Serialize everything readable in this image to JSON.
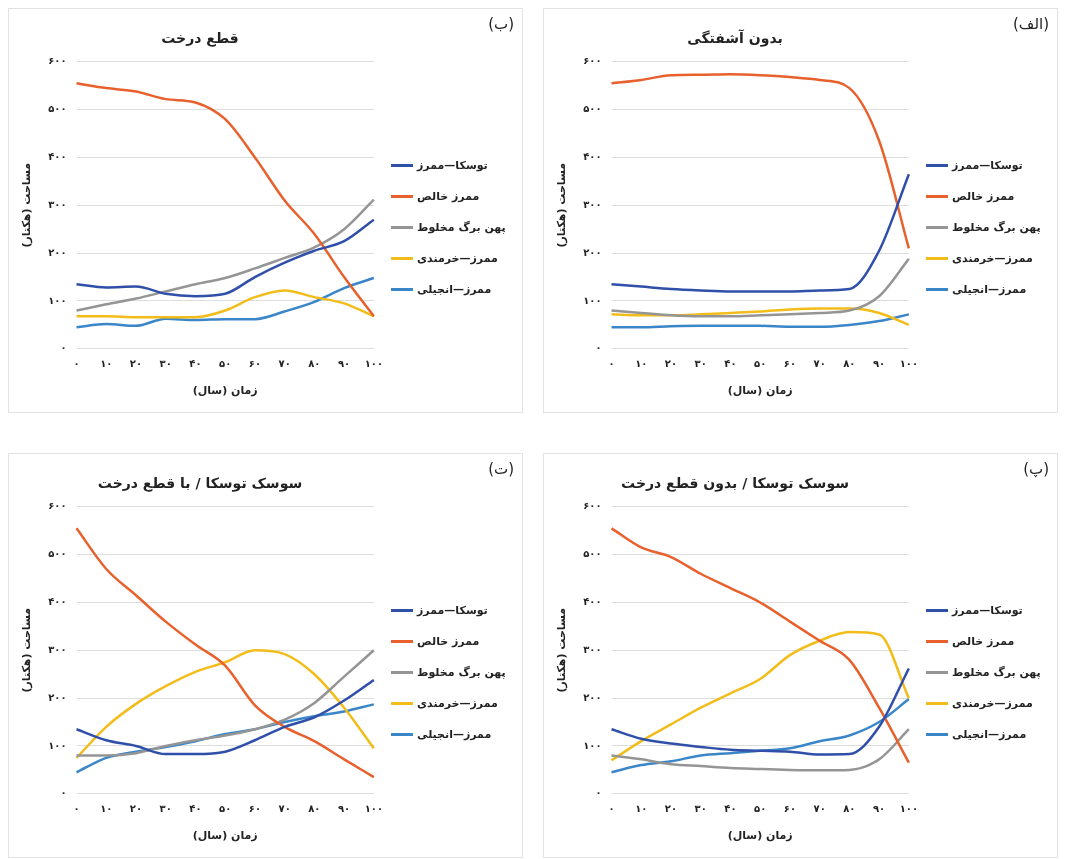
{
  "chart_data": [
    {
      "type": "line",
      "title": "بدون آشفتگی",
      "annotations": [
        "(الف)"
      ],
      "xlabel": "زمان (سال)",
      "ylabel": "مساحت (هکتار)",
      "categories": [
        "۰",
        "۱۰",
        "۲۰",
        "۳۰",
        "۴۰",
        "۵۰",
        "۶۰",
        "۷۰",
        "۸۰",
        "۹۰",
        "۱۰۰"
      ],
      "ylim": [
        0,
        600
      ],
      "yticks": [
        {
          "value": 0,
          "label": "۰"
        },
        {
          "value": 100,
          "label": "۱۰۰"
        },
        {
          "value": 200,
          "label": "۲۰۰"
        },
        {
          "value": 300,
          "label": "۳۰۰"
        },
        {
          "value": 400,
          "label": "۴۰۰"
        },
        {
          "value": 500,
          "label": "۵۰۰"
        },
        {
          "value": 600,
          "label": "۶۰۰"
        }
      ],
      "grid": "y",
      "legend": "right",
      "marker": "none",
      "series": [
        {
          "name": "توسکا—ممرز",
          "color": "#2f4fa8",
          "values": [
            135,
            130,
            125,
            122,
            120,
            120,
            120,
            122,
            125,
            205,
            365
          ]
        },
        {
          "name": "ممرز خالص",
          "color": "#e8602c",
          "values": [
            555,
            562,
            572,
            573,
            574,
            572,
            568,
            562,
            545,
            435,
            210
          ]
        },
        {
          "name": "پهن برگ مخلوط",
          "color": "#959595",
          "values": [
            80,
            75,
            70,
            68,
            68,
            70,
            72,
            75,
            80,
            110,
            188
          ]
        },
        {
          "name": "ممرز—خرمندی",
          "color": "#f2bd1a",
          "values": [
            72,
            70,
            70,
            72,
            75,
            78,
            82,
            84,
            84,
            75,
            50
          ]
        },
        {
          "name": "ممرز—انجیلی",
          "color": "#3a86c8",
          "values": [
            45,
            45,
            47,
            48,
            48,
            48,
            46,
            46,
            50,
            58,
            72
          ]
        }
      ]
    },
    {
      "type": "line",
      "title": "قطع درخت",
      "annotations": [
        "(ب)"
      ],
      "xlabel": "زمان (سال)",
      "ylabel": "مساحت (هکتار)",
      "categories": [
        "۰",
        "۱۰",
        "۲۰",
        "۳۰",
        "۴۰",
        "۵۰",
        "۶۰",
        "۷۰",
        "۸۰",
        "۹۰",
        "۱۰۰"
      ],
      "ylim": [
        0,
        600
      ],
      "yticks": [
        {
          "value": 0,
          "label": "۰"
        },
        {
          "value": 100,
          "label": "۱۰۰"
        },
        {
          "value": 200,
          "label": "۲۰۰"
        },
        {
          "value": 300,
          "label": "۳۰۰"
        },
        {
          "value": 400,
          "label": "۴۰۰"
        },
        {
          "value": 500,
          "label": "۵۰۰"
        },
        {
          "value": 600,
          "label": "۶۰۰"
        }
      ],
      "grid": "y",
      "legend": "right",
      "marker": "none",
      "series": [
        {
          "name": "توسکا—ممرز",
          "color": "#2f4fa8",
          "values": [
            135,
            128,
            130,
            115,
            110,
            115,
            150,
            180,
            205,
            225,
            270
          ]
        },
        {
          "name": "ممرز خالص",
          "color": "#e8602c",
          "values": [
            555,
            545,
            538,
            522,
            515,
            480,
            400,
            310,
            240,
            150,
            68
          ]
        },
        {
          "name": "پهن برگ مخلوط",
          "color": "#959595",
          "values": [
            80,
            93,
            105,
            120,
            135,
            148,
            168,
            190,
            212,
            250,
            312
          ]
        },
        {
          "name": "ممرز—خرمندی",
          "color": "#f2bd1a",
          "values": [
            68,
            68,
            66,
            66,
            66,
            80,
            108,
            122,
            108,
            95,
            68
          ]
        },
        {
          "name": "ممرز—انجیلی",
          "color": "#3a86c8",
          "values": [
            45,
            52,
            48,
            63,
            60,
            62,
            62,
            78,
            98,
            127,
            148
          ]
        }
      ]
    },
    {
      "type": "line",
      "title": "سوسک توسکا / بدون قطع درخت",
      "annotations": [
        "(پ)"
      ],
      "xlabel": "زمان (سال)",
      "ylabel": "مساحت (هکتار)",
      "categories": [
        "۰",
        "۱۰",
        "۲۰",
        "۳۰",
        "۴۰",
        "۵۰",
        "۶۰",
        "۷۰",
        "۸۰",
        "۹۰",
        "۱۰۰"
      ],
      "ylim": [
        0,
        600
      ],
      "yticks": [
        {
          "value": 0,
          "label": "۰"
        },
        {
          "value": 100,
          "label": "۱۰۰"
        },
        {
          "value": 200,
          "label": "۲۰۰"
        },
        {
          "value": 300,
          "label": "۳۰۰"
        },
        {
          "value": 400,
          "label": "۴۰۰"
        },
        {
          "value": 500,
          "label": "۵۰۰"
        },
        {
          "value": 600,
          "label": "۶۰۰"
        }
      ],
      "grid": "y",
      "legend": "right",
      "marker": "none",
      "series": [
        {
          "name": "توسکا—ممرز",
          "color": "#2f4fa8",
          "values": [
            135,
            115,
            105,
            98,
            92,
            90,
            88,
            82,
            83,
            140,
            262
          ]
        },
        {
          "name": "ممرز خالص",
          "color": "#e8602c",
          "values": [
            555,
            515,
            495,
            460,
            430,
            400,
            360,
            320,
            280,
            180,
            65
          ]
        },
        {
          "name": "پهن برگ مخلوط",
          "color": "#959595",
          "values": [
            80,
            72,
            62,
            58,
            54,
            52,
            50,
            49,
            50,
            72,
            135
          ]
        },
        {
          "name": "ممرز—خرمندی",
          "color": "#f2bd1a",
          "values": [
            70,
            110,
            145,
            180,
            210,
            240,
            290,
            320,
            338,
            333,
            200
          ]
        },
        {
          "name": "ممرز—انجیلی",
          "color": "#3a86c8",
          "values": [
            45,
            60,
            68,
            80,
            85,
            90,
            95,
            110,
            122,
            150,
            198
          ]
        }
      ]
    },
    {
      "type": "line",
      "title": "سوسک توسکا / با قطع درخت",
      "annotations": [
        "(ت)"
      ],
      "xlabel": "زمان (سال)",
      "ylabel": "مساحت (هکتار)",
      "categories": [
        "۰",
        "۱۰",
        "۲۰",
        "۳۰",
        "۴۰",
        "۵۰",
        "۶۰",
        "۷۰",
        "۸۰",
        "۹۰",
        "۱۰۰"
      ],
      "ylim": [
        0,
        600
      ],
      "yticks": [
        {
          "value": 0,
          "label": "۰"
        },
        {
          "value": 100,
          "label": "۱۰۰"
        },
        {
          "value": 200,
          "label": "۲۰۰"
        },
        {
          "value": 300,
          "label": "۳۰۰"
        },
        {
          "value": 400,
          "label": "۴۰۰"
        },
        {
          "value": 500,
          "label": "۵۰۰"
        },
        {
          "value": 600,
          "label": "۶۰۰"
        }
      ],
      "grid": "y",
      "legend": "right",
      "marker": "none",
      "series": [
        {
          "name": "توسکا—ممرز",
          "color": "#2f4fa8",
          "values": [
            135,
            112,
            100,
            83,
            83,
            88,
            112,
            140,
            160,
            195,
            238
          ]
        },
        {
          "name": "ممرز خالص",
          "color": "#e8602c",
          "values": [
            555,
            470,
            415,
            360,
            312,
            268,
            185,
            140,
            110,
            72,
            35
          ]
        },
        {
          "name": "پهن برگ مخلوط",
          "color": "#959595",
          "values": [
            80,
            80,
            85,
            100,
            112,
            122,
            135,
            155,
            190,
            245,
            300
          ]
        },
        {
          "name": "ممرز—خرمندی",
          "color": "#f2bd1a",
          "values": [
            75,
            140,
            188,
            225,
            255,
            275,
            300,
            292,
            250,
            180,
            95
          ]
        },
        {
          "name": "ممرز—انجیلی",
          "color": "#3a86c8",
          "values": [
            45,
            75,
            88,
            98,
            110,
            125,
            135,
            150,
            162,
            172,
            187
          ]
        }
      ]
    }
  ]
}
